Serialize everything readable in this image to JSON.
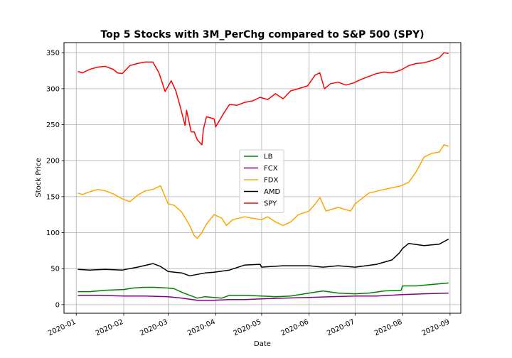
{
  "chart_data": {
    "type": "line",
    "title": "Top 5 Stocks with 3M_PerChg compared to S&P 500 (SPY)",
    "xlabel": "Date",
    "ylabel": "Stock Price",
    "xlim": [
      "2019-12-24",
      "2020-09-08"
    ],
    "ylim": [
      -12,
      364
    ],
    "x_ticks": [
      "2020-01-01",
      "2020-02-01",
      "2020-03-01",
      "2020-04-01",
      "2020-05-01",
      "2020-06-01",
      "2020-07-01",
      "2020-08-01",
      "2020-09-01"
    ],
    "x_tick_labels": [
      "2020-01",
      "2020-02",
      "2020-03",
      "2020-04",
      "2020-05",
      "2020-06",
      "2020-07",
      "2020-08",
      "2020-09"
    ],
    "y_ticks": [
      0,
      50,
      100,
      150,
      200,
      250,
      300,
      350
    ],
    "grid": true,
    "legend_position": "center",
    "series": [
      {
        "name": "LB",
        "color": "#008000",
        "points": [
          [
            "2020-01-02",
            18
          ],
          [
            "2020-01-10",
            18
          ],
          [
            "2020-01-20",
            20
          ],
          [
            "2020-02-01",
            21
          ],
          [
            "2020-02-07",
            23
          ],
          [
            "2020-02-14",
            24
          ],
          [
            "2020-02-21",
            24
          ],
          [
            "2020-03-01",
            23
          ],
          [
            "2020-03-05",
            22
          ],
          [
            "2020-03-10",
            17
          ],
          [
            "2020-03-15",
            13
          ],
          [
            "2020-03-20",
            9
          ],
          [
            "2020-03-25",
            11
          ],
          [
            "2020-03-31",
            10
          ],
          [
            "2020-04-05",
            9
          ],
          [
            "2020-04-10",
            13
          ],
          [
            "2020-04-20",
            13
          ],
          [
            "2020-05-01",
            12
          ],
          [
            "2020-05-10",
            11
          ],
          [
            "2020-05-20",
            12
          ],
          [
            "2020-06-01",
            16
          ],
          [
            "2020-06-10",
            19
          ],
          [
            "2020-06-20",
            16
          ],
          [
            "2020-07-01",
            15
          ],
          [
            "2020-07-10",
            16
          ],
          [
            "2020-07-20",
            19
          ],
          [
            "2020-07-31",
            20
          ],
          [
            "2020-08-01",
            26
          ],
          [
            "2020-08-10",
            26
          ],
          [
            "2020-08-20",
            28
          ],
          [
            "2020-08-31",
            30
          ]
        ]
      },
      {
        "name": "FCX",
        "color": "#800080",
        "points": [
          [
            "2020-01-02",
            13
          ],
          [
            "2020-01-15",
            13
          ],
          [
            "2020-02-01",
            12
          ],
          [
            "2020-02-15",
            12
          ],
          [
            "2020-03-01",
            11
          ],
          [
            "2020-03-10",
            9
          ],
          [
            "2020-03-20",
            6
          ],
          [
            "2020-03-31",
            6
          ],
          [
            "2020-04-10",
            7
          ],
          [
            "2020-04-20",
            7
          ],
          [
            "2020-05-01",
            8
          ],
          [
            "2020-05-15",
            9
          ],
          [
            "2020-06-01",
            10
          ],
          [
            "2020-06-15",
            11
          ],
          [
            "2020-07-01",
            12
          ],
          [
            "2020-07-15",
            12
          ],
          [
            "2020-08-01",
            14
          ],
          [
            "2020-08-15",
            15
          ],
          [
            "2020-08-31",
            16
          ]
        ]
      },
      {
        "name": "FDX",
        "color": "#FFA500",
        "points": [
          [
            "2020-01-02",
            155
          ],
          [
            "2020-01-05",
            153
          ],
          [
            "2020-01-10",
            157
          ],
          [
            "2020-01-15",
            160
          ],
          [
            "2020-01-20",
            158
          ],
          [
            "2020-01-25",
            154
          ],
          [
            "2020-01-31",
            147
          ],
          [
            "2020-02-05",
            143
          ],
          [
            "2020-02-10",
            152
          ],
          [
            "2020-02-15",
            158
          ],
          [
            "2020-02-20",
            160
          ],
          [
            "2020-02-25",
            165
          ],
          [
            "2020-03-01",
            140
          ],
          [
            "2020-03-05",
            138
          ],
          [
            "2020-03-10",
            128
          ],
          [
            "2020-03-15",
            110
          ],
          [
            "2020-03-18",
            96
          ],
          [
            "2020-03-20",
            92
          ],
          [
            "2020-03-23",
            100
          ],
          [
            "2020-03-26",
            112
          ],
          [
            "2020-03-31",
            125
          ],
          [
            "2020-04-05",
            120
          ],
          [
            "2020-04-08",
            110
          ],
          [
            "2020-04-12",
            118
          ],
          [
            "2020-04-20",
            122
          ],
          [
            "2020-04-25",
            120
          ],
          [
            "2020-05-01",
            118
          ],
          [
            "2020-05-05",
            122
          ],
          [
            "2020-05-10",
            115
          ],
          [
            "2020-05-15",
            110
          ],
          [
            "2020-05-20",
            115
          ],
          [
            "2020-05-25",
            125
          ],
          [
            "2020-06-01",
            130
          ],
          [
            "2020-06-05",
            140
          ],
          [
            "2020-06-08",
            149
          ],
          [
            "2020-06-12",
            130
          ],
          [
            "2020-06-20",
            135
          ],
          [
            "2020-06-28",
            130
          ],
          [
            "2020-07-01",
            140
          ],
          [
            "2020-07-10",
            155
          ],
          [
            "2020-07-20",
            160
          ],
          [
            "2020-07-31",
            165
          ],
          [
            "2020-08-05",
            170
          ],
          [
            "2020-08-10",
            185
          ],
          [
            "2020-08-15",
            205
          ],
          [
            "2020-08-20",
            210
          ],
          [
            "2020-08-25",
            212
          ],
          [
            "2020-08-28",
            222
          ],
          [
            "2020-08-31",
            220
          ]
        ]
      },
      {
        "name": "AMD",
        "color": "#000000",
        "points": [
          [
            "2020-01-02",
            49
          ],
          [
            "2020-01-10",
            48
          ],
          [
            "2020-01-20",
            49
          ],
          [
            "2020-01-31",
            48
          ],
          [
            "2020-02-10",
            52
          ],
          [
            "2020-02-20",
            57
          ],
          [
            "2020-02-25",
            53
          ],
          [
            "2020-03-01",
            46
          ],
          [
            "2020-03-10",
            44
          ],
          [
            "2020-03-15",
            40
          ],
          [
            "2020-03-20",
            42
          ],
          [
            "2020-03-25",
            44
          ],
          [
            "2020-03-31",
            45
          ],
          [
            "2020-04-10",
            48
          ],
          [
            "2020-04-20",
            55
          ],
          [
            "2020-04-30",
            56
          ],
          [
            "2020-05-01",
            52
          ],
          [
            "2020-05-15",
            54
          ],
          [
            "2020-06-01",
            54
          ],
          [
            "2020-06-10",
            52
          ],
          [
            "2020-06-20",
            54
          ],
          [
            "2020-07-01",
            52
          ],
          [
            "2020-07-15",
            56
          ],
          [
            "2020-07-25",
            62
          ],
          [
            "2020-07-30",
            72
          ],
          [
            "2020-08-01",
            78
          ],
          [
            "2020-08-05",
            85
          ],
          [
            "2020-08-15",
            82
          ],
          [
            "2020-08-25",
            84
          ],
          [
            "2020-08-31",
            91
          ]
        ]
      },
      {
        "name": "SPY",
        "color": "#FF0000",
        "points": [
          [
            "2020-01-02",
            324
          ],
          [
            "2020-01-05",
            322
          ],
          [
            "2020-01-10",
            327
          ],
          [
            "2020-01-15",
            330
          ],
          [
            "2020-01-20",
            331
          ],
          [
            "2020-01-25",
            327
          ],
          [
            "2020-01-28",
            322
          ],
          [
            "2020-01-31",
            321
          ],
          [
            "2020-02-05",
            332
          ],
          [
            "2020-02-10",
            335
          ],
          [
            "2020-02-15",
            337
          ],
          [
            "2020-02-20",
            337
          ],
          [
            "2020-02-24",
            322
          ],
          [
            "2020-02-28",
            296
          ],
          [
            "2020-03-03",
            311
          ],
          [
            "2020-03-06",
            297
          ],
          [
            "2020-03-09",
            274
          ],
          [
            "2020-03-12",
            249
          ],
          [
            "2020-03-13",
            270
          ],
          [
            "2020-03-16",
            240
          ],
          [
            "2020-03-18",
            240
          ],
          [
            "2020-03-20",
            229
          ],
          [
            "2020-03-23",
            222
          ],
          [
            "2020-03-24",
            244
          ],
          [
            "2020-03-26",
            261
          ],
          [
            "2020-03-31",
            258
          ],
          [
            "2020-04-01",
            247
          ],
          [
            "2020-04-06",
            265
          ],
          [
            "2020-04-10",
            278
          ],
          [
            "2020-04-15",
            277
          ],
          [
            "2020-04-20",
            281
          ],
          [
            "2020-04-25",
            283
          ],
          [
            "2020-04-30",
            288
          ],
          [
            "2020-05-05",
            285
          ],
          [
            "2020-05-10",
            293
          ],
          [
            "2020-05-15",
            286
          ],
          [
            "2020-05-20",
            297
          ],
          [
            "2020-05-25",
            300
          ],
          [
            "2020-05-31",
            304
          ],
          [
            "2020-06-05",
            319
          ],
          [
            "2020-06-08",
            322
          ],
          [
            "2020-06-11",
            300
          ],
          [
            "2020-06-15",
            307
          ],
          [
            "2020-06-20",
            309
          ],
          [
            "2020-06-25",
            305
          ],
          [
            "2020-06-30",
            308
          ],
          [
            "2020-07-05",
            313
          ],
          [
            "2020-07-10",
            317
          ],
          [
            "2020-07-15",
            321
          ],
          [
            "2020-07-20",
            323
          ],
          [
            "2020-07-25",
            322
          ],
          [
            "2020-07-31",
            326
          ],
          [
            "2020-08-05",
            332
          ],
          [
            "2020-08-10",
            335
          ],
          [
            "2020-08-15",
            336
          ],
          [
            "2020-08-20",
            339
          ],
          [
            "2020-08-25",
            343
          ],
          [
            "2020-08-28",
            350
          ],
          [
            "2020-08-31",
            349
          ]
        ]
      }
    ]
  }
}
